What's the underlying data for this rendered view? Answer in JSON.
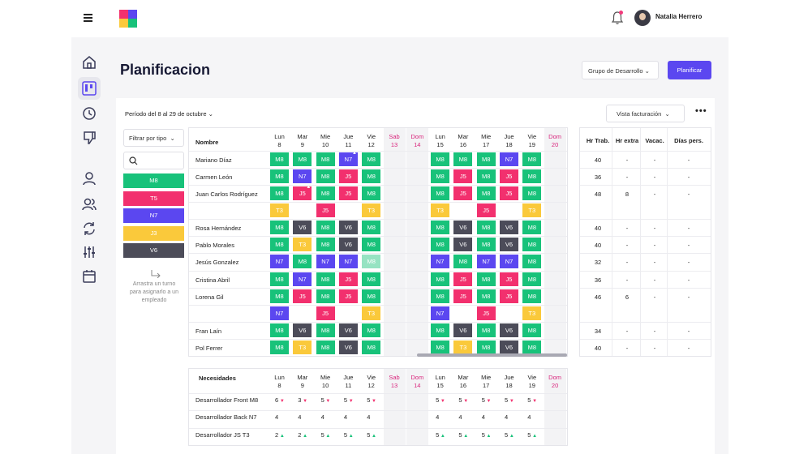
{
  "header": {
    "user_name": "Natalia Herrero"
  },
  "page": {
    "title": "Planificacion",
    "group_select": "Grupo de Desarrollo",
    "plan_button": "Planificar"
  },
  "toolbar": {
    "period": "Período del 8 al 29 de octubre",
    "view_select": "Vista facturación",
    "more": "•••"
  },
  "filter": {
    "type_select": "Filtrar por tipo",
    "hint": "Arrastra un turno para asignarlo a un empleado"
  },
  "palette": [
    {
      "code": "M8",
      "color": "#18c27a"
    },
    {
      "code": "T5",
      "color": "#f2306e"
    },
    {
      "code": "N7",
      "color": "#5b47f0"
    },
    {
      "code": "J3",
      "color": "#fac93b"
    },
    {
      "code": "V6",
      "color": "#4c4c59"
    }
  ],
  "days": [
    {
      "d": "Lun",
      "n": "8",
      "we": false
    },
    {
      "d": "Mar",
      "n": "9",
      "we": false
    },
    {
      "d": "Mie",
      "n": "10",
      "we": false
    },
    {
      "d": "Jue",
      "n": "11",
      "we": false
    },
    {
      "d": "Vie",
      "n": "12",
      "we": false
    },
    {
      "d": "Sab",
      "n": "13",
      "we": true
    },
    {
      "d": "Dom",
      "n": "14",
      "we": true
    },
    {
      "d": "Lun",
      "n": "15",
      "we": false
    },
    {
      "d": "Mar",
      "n": "16",
      "we": false
    },
    {
      "d": "Mie",
      "n": "17",
      "we": false
    },
    {
      "d": "Jue",
      "n": "18",
      "we": false
    },
    {
      "d": "Vie",
      "n": "19",
      "we": false
    },
    {
      "d": "Dom",
      "n": "20",
      "we": true
    }
  ],
  "schedule": {
    "name_header": "Nombre",
    "rows": [
      {
        "name": "Mariano Díaz",
        "cells": [
          "M8",
          "M8",
          "M8",
          "N7",
          "M8",
          "",
          "",
          "M8",
          "M8",
          "M8",
          "N7",
          "M8",
          ""
        ],
        "marks": {
          "3": "▲"
        }
      },
      {
        "name": "Carmen León",
        "cells": [
          "M8",
          "N7",
          "M8",
          "J5",
          "M8",
          "",
          "",
          "M8",
          "J5",
          "M8",
          "J5",
          "M8",
          ""
        ]
      },
      {
        "name": "Juan Carlos Rodríguez",
        "cells": [
          "M8",
          "J5",
          "M8",
          "J5",
          "M8",
          "",
          "",
          "M8",
          "J5",
          "M8",
          "J5",
          "M8",
          ""
        ],
        "marks": {
          "1": "▲"
        }
      },
      {
        "name": "",
        "cells": [
          "T3",
          "",
          "J5",
          "",
          "T3",
          "",
          "",
          "T3",
          "",
          "J5",
          "",
          "T3",
          ""
        ]
      },
      {
        "name": "Rosa Hernández",
        "cells": [
          "M8",
          "V6",
          "M8",
          "V6",
          "M8",
          "",
          "",
          "M8",
          "V6",
          "M8",
          "V6",
          "M8",
          ""
        ]
      },
      {
        "name": "Pablo Morales",
        "cells": [
          "M8",
          "T3",
          "M8",
          "V6",
          "M8",
          "",
          "",
          "M8",
          "V6",
          "M8",
          "V6",
          "M8",
          ""
        ]
      },
      {
        "name": "Jesús Gonzalez",
        "cells": [
          "N7",
          "M8",
          "N7",
          "N7",
          "M8",
          "",
          "",
          "N7",
          "M8",
          "N7",
          "N7",
          "M8",
          ""
        ]
      },
      {
        "name": "Cristina Abril",
        "cells": [
          "M8",
          "N7",
          "M8",
          "J5",
          "M8",
          "",
          "",
          "M8",
          "J5",
          "M8",
          "J5",
          "M8",
          ""
        ]
      },
      {
        "name": "Lorena Gil",
        "cells": [
          "M8",
          "J5",
          "M8",
          "J5",
          "M8",
          "",
          "",
          "M8",
          "J5",
          "M8",
          "J5",
          "M8",
          ""
        ]
      },
      {
        "name": "",
        "cells": [
          "N7",
          "",
          "J5",
          "",
          "T3",
          "",
          "",
          "N7",
          "",
          "J5",
          "",
          "T3",
          ""
        ]
      },
      {
        "name": "Fran Laín",
        "cells": [
          "M8",
          "V6",
          "M8",
          "V6",
          "M8",
          "",
          "",
          "M8",
          "V6",
          "M8",
          "V6",
          "M8",
          ""
        ]
      },
      {
        "name": "Pol Ferrer",
        "cells": [
          "M8",
          "T3",
          "M8",
          "V6",
          "M8",
          "",
          "",
          "M8",
          "T3",
          "M8",
          "V6",
          "M8",
          ""
        ]
      }
    ]
  },
  "hours": {
    "headers": [
      "Hr Trab.",
      "Hr extra",
      "Vacac.",
      "Días pers."
    ],
    "rows": [
      [
        "40",
        "-",
        "-",
        "-"
      ],
      [
        "36",
        "-",
        "-",
        "-"
      ],
      [
        "48",
        "8",
        "-",
        "-"
      ],
      [
        "40",
        "-",
        "-",
        "-"
      ],
      [
        "40",
        "-",
        "-",
        "-"
      ],
      [
        "32",
        "-",
        "-",
        "-"
      ],
      [
        "36",
        "-",
        "-",
        "-"
      ],
      [
        "46",
        "6",
        "-",
        "-"
      ],
      [
        "34",
        "-",
        "-",
        "-"
      ],
      [
        "40",
        "-",
        "-",
        "-"
      ]
    ]
  },
  "needs": {
    "header": "Necesidades",
    "rows": [
      {
        "name": "Desarrollador Front M8",
        "vals": [
          [
            "6",
            "dn"
          ],
          [
            "3",
            "dn"
          ],
          [
            "5",
            "dn"
          ],
          [
            "5",
            "dn"
          ],
          [
            "5",
            "dn"
          ],
          [
            "",
            ""
          ],
          [
            "",
            ""
          ],
          [
            "5",
            "dn"
          ],
          [
            "5",
            "dn"
          ],
          [
            "5",
            "dn"
          ],
          [
            "5",
            "dn"
          ],
          [
            "5",
            "dn"
          ],
          [
            "",
            ""
          ]
        ]
      },
      {
        "name": "Desarrollador Back N7",
        "vals": [
          [
            "4",
            ""
          ],
          [
            "4",
            ""
          ],
          [
            "4",
            ""
          ],
          [
            "4",
            ""
          ],
          [
            "4",
            ""
          ],
          [
            "",
            ""
          ],
          [
            "",
            ""
          ],
          [
            "4",
            ""
          ],
          [
            "4",
            ""
          ],
          [
            "4",
            ""
          ],
          [
            "4",
            ""
          ],
          [
            "4",
            ""
          ],
          [
            "",
            ""
          ]
        ]
      },
      {
        "name": "Desarrollador JS T3",
        "vals": [
          [
            "2",
            "up"
          ],
          [
            "2",
            "up"
          ],
          [
            "5",
            "up"
          ],
          [
            "5",
            "up"
          ],
          [
            "5",
            "up"
          ],
          [
            "",
            ""
          ],
          [
            "",
            ""
          ],
          [
            "5",
            "up"
          ],
          [
            "5",
            "up"
          ],
          [
            "5",
            "up"
          ],
          [
            "5",
            "up"
          ],
          [
            "5",
            "up"
          ],
          [
            "",
            ""
          ]
        ]
      }
    ]
  }
}
